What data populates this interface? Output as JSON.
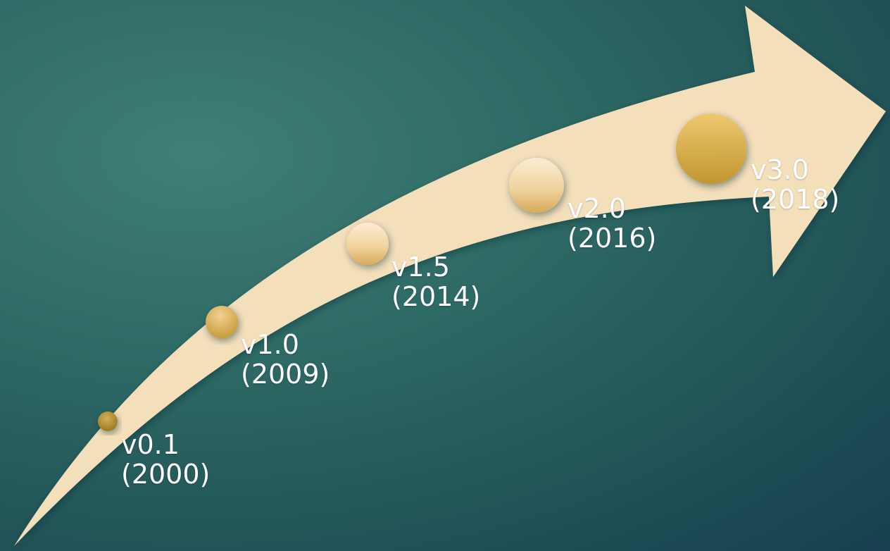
{
  "colors": {
    "arrow_fill": "#f4dfbb",
    "milestone_dark": "#b8912f",
    "milestone_light": "#f2d9a8"
  },
  "milestones": [
    {
      "version": "v0.1",
      "year": "(2000)",
      "icon": "circle-icon"
    },
    {
      "version": "v1.0",
      "year": "(2009)",
      "icon": "circle-icon"
    },
    {
      "version": "v1.5",
      "year": "(2014)",
      "icon": "circle-icon"
    },
    {
      "version": "v2.0",
      "year": "(2016)",
      "icon": "circle-icon"
    },
    {
      "version": "v3.0",
      "year": "(2018)",
      "icon": "circle-icon"
    }
  ]
}
